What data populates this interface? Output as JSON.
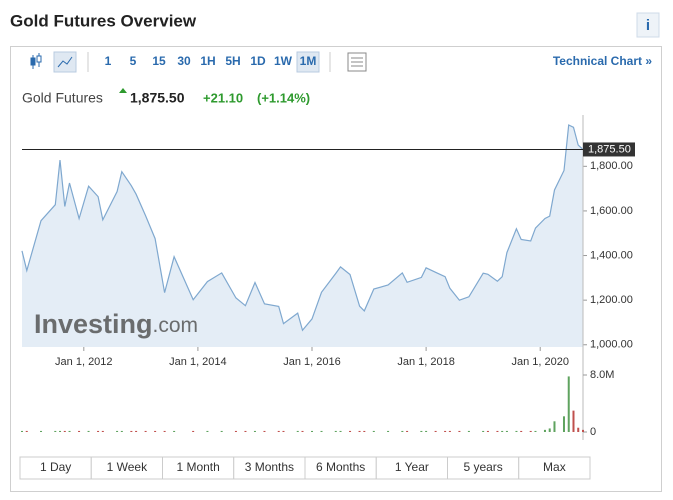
{
  "header": {
    "title": "Gold Futures Overview",
    "info": "i"
  },
  "toolbar": {
    "intervals": [
      "1",
      "5",
      "15",
      "30",
      "1H",
      "5H",
      "1D",
      "1W",
      "1M"
    ],
    "active_index": 8,
    "link": "Technical Chart »"
  },
  "quote": {
    "name": "Gold Futures",
    "last": "1,875.50",
    "change": "+21.10",
    "change_pct": "(+1.14%)"
  },
  "chart_data": {
    "type": "area",
    "color": "#7fa8cf",
    "fill": "#e4edf6",
    "watermark": [
      "Investing",
      ".com"
    ],
    "x": [
      "2010-12-01",
      "2011-01-01",
      "2011-04-01",
      "2011-07-01",
      "2011-08-01",
      "2011-09-01",
      "2011-10-01",
      "2011-12-01",
      "2012-02-01",
      "2012-04-01",
      "2012-05-01",
      "2012-08-01",
      "2012-09-01",
      "2012-11-01",
      "2012-12-01",
      "2013-02-01",
      "2013-04-01",
      "2013-06-01",
      "2013-08-01",
      "2013-12-01",
      "2014-03-01",
      "2014-06-01",
      "2014-09-01",
      "2014-11-01",
      "2015-01-01",
      "2015-03-01",
      "2015-06-01",
      "2015-07-01",
      "2015-10-01",
      "2015-11-01",
      "2016-01-01",
      "2016-03-01",
      "2016-06-01",
      "2016-07-01",
      "2016-09-01",
      "2016-11-01",
      "2016-12-01",
      "2017-02-01",
      "2017-05-01",
      "2017-08-01",
      "2017-09-01",
      "2017-12-01",
      "2018-01-01",
      "2018-03-01",
      "2018-05-01",
      "2018-06-01",
      "2018-08-01",
      "2018-10-01",
      "2019-01-01",
      "2019-02-01",
      "2019-04-01",
      "2019-05-01",
      "2019-06-01",
      "2019-08-01",
      "2019-09-01",
      "2019-11-01",
      "2019-12-01",
      "2020-02-01",
      "2020-03-01",
      "2020-04-01",
      "2020-06-01",
      "2020-07-01",
      "2020-08-01",
      "2020-09-01",
      "2020-10-01"
    ],
    "values": [
      1421,
      1333,
      1556,
      1628,
      1828,
      1620,
      1725,
      1566,
      1711,
      1664,
      1560,
      1687,
      1776,
      1713,
      1675,
      1578,
      1476,
      1234,
      1395,
      1202,
      1283,
      1322,
      1210,
      1175,
      1279,
      1183,
      1172,
      1095,
      1142,
      1065,
      1116,
      1235,
      1320,
      1349,
      1315,
      1173,
      1152,
      1250,
      1268,
      1322,
      1280,
      1302,
      1345,
      1325,
      1305,
      1253,
      1200,
      1215,
      1321,
      1316,
      1285,
      1305,
      1413,
      1520,
      1472,
      1465,
      1523,
      1566,
      1577,
      1694,
      1781,
      1985,
      1975,
      1895,
      1875.5
    ],
    "volume": [
      150000,
      150000,
      150000,
      150000,
      150000,
      150000,
      150000,
      150000,
      150000,
      150000,
      150000,
      150000,
      150000,
      150000,
      150000,
      150000,
      150000,
      150000,
      150000,
      150000,
      150000,
      150000,
      150000,
      150000,
      150000,
      150000,
      150000,
      150000,
      150000,
      150000,
      150000,
      150000,
      150000,
      150000,
      150000,
      150000,
      150000,
      150000,
      150000,
      150000,
      150000,
      150000,
      150000,
      150000,
      150000,
      150000,
      150000,
      150000,
      150000,
      150000,
      150000,
      150000,
      150000,
      150000,
      150000,
      150000,
      150000,
      300000,
      500000,
      1500000,
      2200000,
      7800000,
      3000000,
      600000,
      300000
    ],
    "volume_colors": {
      "up": "#5fa35f",
      "down": "#c0504d"
    },
    "xlim": [
      "2010-12-01",
      "2020-10-01"
    ],
    "xticks": [
      {
        "value": "2012-01-01",
        "label": "Jan 1, 2012"
      },
      {
        "value": "2014-01-01",
        "label": "Jan 1, 2014"
      },
      {
        "value": "2016-01-01",
        "label": "Jan 1, 2016"
      },
      {
        "value": "2018-01-01",
        "label": "Jan 1, 2018"
      },
      {
        "value": "2020-01-01",
        "label": "Jan 1, 2020"
      }
    ],
    "ylim": [
      990,
      2030
    ],
    "yticks": [
      {
        "value": 1000,
        "label": "1,000.00"
      },
      {
        "value": 1200,
        "label": "1,200.00"
      },
      {
        "value": 1400,
        "label": "1,400.00"
      },
      {
        "value": 1600,
        "label": "1,600.00"
      },
      {
        "value": 1800,
        "label": "1,800.00"
      }
    ],
    "last": {
      "value": 1875.5,
      "label": "1,875.50"
    },
    "y2lim": [
      0,
      8000000
    ],
    "y2ticks": [
      0,
      {
        "value": 8000000,
        "label": "8.0M"
      }
    ]
  },
  "ranges": [
    "1 Day",
    "1 Week",
    "1 Month",
    "3 Months",
    "6 Months",
    "1 Year",
    "5 years",
    "Max"
  ]
}
